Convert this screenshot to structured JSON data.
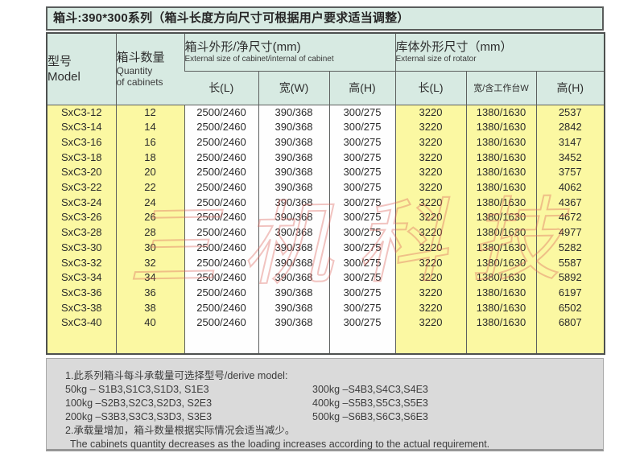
{
  "page": {
    "title": "箱斗:390*300系列（箱斗长度方向尺寸可根据用户要求适当调整）"
  },
  "table": {
    "col_model": {
      "zh": "型号",
      "en": "Model"
    },
    "col_qty": {
      "zh": "箱斗数量",
      "en1": "Quantity",
      "en2": "of cabinets"
    },
    "group_cabinet": {
      "zh": "箱斗外形/净尺寸(mm)",
      "en": "External size of cabinet/internal of cabinet"
    },
    "group_rotator": {
      "zh": "库体外形尺寸（mm）",
      "en": "External size of rotator"
    },
    "sub_headers": [
      "长(L)",
      "宽(W)",
      "高(H)",
      "长(L)",
      "宽/含工作台W",
      "高(H)"
    ],
    "rows": [
      {
        "model": "SxC3-12",
        "qty": "12",
        "c_l": "2500/2460",
        "c_w": "390/368",
        "c_h": "300/275",
        "r_l": "3220",
        "r_w": "1380/1630",
        "r_h": "2537"
      },
      {
        "model": "SxC3-14",
        "qty": "14",
        "c_l": "2500/2460",
        "c_w": "390/368",
        "c_h": "300/275",
        "r_l": "3220",
        "r_w": "1380/1630",
        "r_h": "2842"
      },
      {
        "model": "SxC3-16",
        "qty": "16",
        "c_l": "2500/2460",
        "c_w": "390/368",
        "c_h": "300/275",
        "r_l": "3220",
        "r_w": "1380/1630",
        "r_h": "3147"
      },
      {
        "model": "SxC3-18",
        "qty": "18",
        "c_l": "2500/2460",
        "c_w": "390/368",
        "c_h": "300/275",
        "r_l": "3220",
        "r_w": "1380/1630",
        "r_h": "3452"
      },
      {
        "model": "SxC3-20",
        "qty": "20",
        "c_l": "2500/2460",
        "c_w": "390/368",
        "c_h": "300/275",
        "r_l": "3220",
        "r_w": "1380/1630",
        "r_h": "3757"
      },
      {
        "model": "SxC3-22",
        "qty": "22",
        "c_l": "2500/2460",
        "c_w": "390/368",
        "c_h": "300/275",
        "r_l": "3220",
        "r_w": "1380/1630",
        "r_h": "4062"
      },
      {
        "model": "SxC3-24",
        "qty": "24",
        "c_l": "2500/2460",
        "c_w": "390/368",
        "c_h": "300/275",
        "r_l": "3220",
        "r_w": "1380/1630",
        "r_h": "4367"
      },
      {
        "model": "SxC3-26",
        "qty": "26",
        "c_l": "2500/2460",
        "c_w": "390/368",
        "c_h": "300/275",
        "r_l": "3220",
        "r_w": "1380/1630",
        "r_h": "4672"
      },
      {
        "model": "SxC3-28",
        "qty": "28",
        "c_l": "2500/2460",
        "c_w": "390/368",
        "c_h": "300/275",
        "r_l": "3220",
        "r_w": "1380/1630",
        "r_h": "4977"
      },
      {
        "model": "SxC3-30",
        "qty": "30",
        "c_l": "2500/2460",
        "c_w": "390/368",
        "c_h": "300/275",
        "r_l": "3220",
        "r_w": "1380/1630",
        "r_h": "5282"
      },
      {
        "model": "SxC3-32",
        "qty": "32",
        "c_l": "2500/2460",
        "c_w": "390/368",
        "c_h": "300/275",
        "r_l": "3220",
        "r_w": "1380/1630",
        "r_h": "5587"
      },
      {
        "model": "SxC3-34",
        "qty": "34",
        "c_l": "2500/2460",
        "c_w": "390/368",
        "c_h": "300/275",
        "r_l": "3220",
        "r_w": "1380/1630",
        "r_h": "5892"
      },
      {
        "model": "SxC3-36",
        "qty": "36",
        "c_l": "2500/2460",
        "c_w": "390/368",
        "c_h": "300/275",
        "r_l": "3220",
        "r_w": "1380/1630",
        "r_h": "6197"
      },
      {
        "model": "SxC3-38",
        "qty": "38",
        "c_l": "2500/2460",
        "c_w": "390/368",
        "c_h": "300/275",
        "r_l": "3220",
        "r_w": "1380/1630",
        "r_h": "6502"
      },
      {
        "model": "SxC3-40",
        "qty": "40",
        "c_l": "2500/2460",
        "c_w": "390/368",
        "c_h": "300/275",
        "r_l": "3220",
        "r_w": "1380/1630",
        "r_h": "6807"
      }
    ]
  },
  "notes": {
    "line1": "1.此系列箱斗每斗承载量可选择型号/derive model:",
    "left": [
      "50kg – S1B3,S1C3,S1D3, S1E3",
      "100kg –S2B3,S2C3,S2D3, S2E3",
      "200kg –S3B3,S3C3,S3D3, S3E3"
    ],
    "right": [
      "300kg –S4B3,S4C3,S4E3",
      "400kg –S5B3,S5C3,S5E3",
      "500kg –S6B3,S6C3,S6E3"
    ],
    "line2_zh": "2.承载量增加，箱斗数量根据实际情况会适当减少。",
    "line2_en": "The cabinets quantity decreases as the loading increases according to the actual requirement."
  },
  "watermark": {
    "text": "三机科技"
  },
  "colors": {
    "header_green": "#d7eae2",
    "row_yellow": "#fbf8a2",
    "note_gray": "#dadada",
    "watermark_red": "rgba(219,103,94,0.45)"
  }
}
